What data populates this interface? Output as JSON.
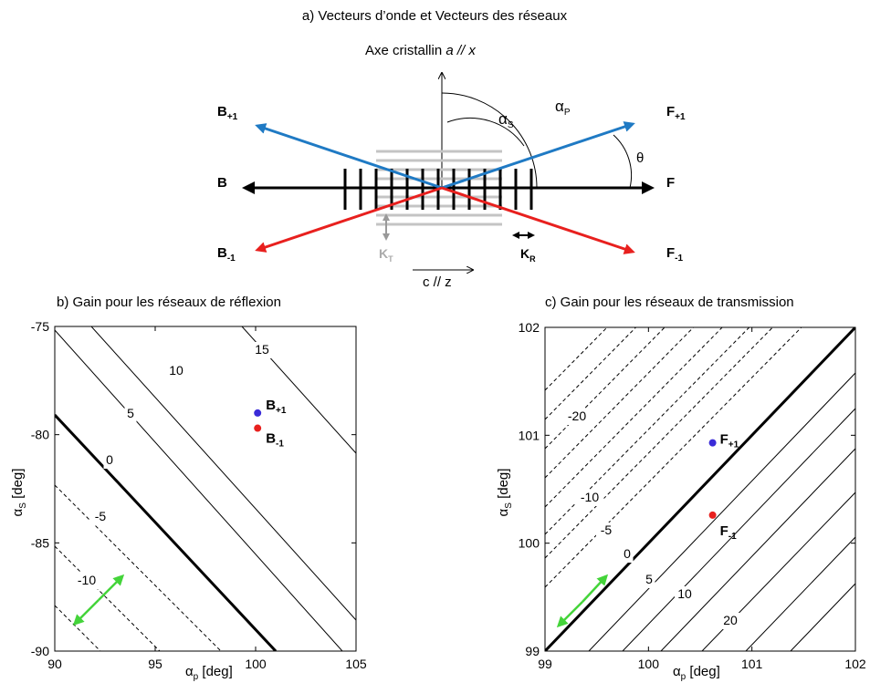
{
  "diagram_a": {
    "title": "a) Vecteurs d’onde et Vecteurs des réseaux",
    "axis_a_prefix": "Axe cristallin ",
    "axis_a_italic": "a // x",
    "axis_c": "c // z",
    "labels": {
      "B_plus": {
        "main": "B",
        "sub": "+1"
      },
      "B": "B",
      "B_minus": {
        "main": "B",
        "sub": "-1"
      },
      "F_plus": {
        "main": "F",
        "sub": "+1"
      },
      "F": "F",
      "F_minus": {
        "main": "F",
        "sub": "-1"
      },
      "alpha_s": {
        "main": "α",
        "sub": "S"
      },
      "alpha_p": {
        "main": "α",
        "sub": "P"
      },
      "theta": "θ",
      "KT": {
        "main": "K",
        "sub": "T"
      },
      "KR": {
        "main": "K",
        "sub": "R"
      }
    },
    "colors": {
      "blue": "#1f7ac4",
      "red": "#e8201e",
      "grey": "#bbbbbb",
      "black": "#000000"
    }
  },
  "chart_data": [
    {
      "type": "contour",
      "title": "b) Gain pour les réseaux de réflexion",
      "xlabel": {
        "main": "α",
        "sub": "p",
        "rest": " [deg]"
      },
      "ylabel": {
        "main": "α",
        "sub": "S",
        "rest": " [deg]"
      },
      "xlim": [
        90,
        105
      ],
      "ylim": [
        -90,
        -75
      ],
      "xticks": [
        "90",
        "95",
        "100",
        "105"
      ],
      "yticks": [
        "-90",
        "-85",
        "-80",
        "-75"
      ],
      "contour_labels": [
        "-10",
        "-5",
        "0",
        "5",
        "10",
        "15"
      ],
      "points": [
        {
          "name": "B+1",
          "main": "B",
          "sub": "+1",
          "x": 100.1,
          "y": -79.0,
          "color": "#3a2bd8"
        },
        {
          "name": "B-1",
          "main": "B",
          "sub": "-1",
          "x": 100.1,
          "y": -79.7,
          "color": "#e8201e"
        }
      ]
    },
    {
      "type": "contour",
      "title": "c) Gain pour les réseaux de transmission",
      "xlabel": {
        "main": "α",
        "sub": "p",
        "rest": " [deg]"
      },
      "ylabel": {
        "main": "α",
        "sub": "S",
        "rest": " [deg]"
      },
      "xlim": [
        99,
        102
      ],
      "ylim": [
        99,
        102
      ],
      "xticks": [
        "99",
        "100",
        "101",
        "102"
      ],
      "yticks": [
        "99",
        "100",
        "101",
        "102"
      ],
      "contour_labels": [
        "-20",
        "-10",
        "-5",
        "0",
        "5",
        "10",
        "20"
      ],
      "points": [
        {
          "name": "F+1",
          "main": "F",
          "sub": "+1",
          "x": 100.62,
          "y": 100.93,
          "color": "#3a2bd8"
        },
        {
          "name": "F-1",
          "main": "F",
          "sub": "-1",
          "x": 100.62,
          "y": 100.26,
          "color": "#e8201e"
        }
      ]
    }
  ]
}
